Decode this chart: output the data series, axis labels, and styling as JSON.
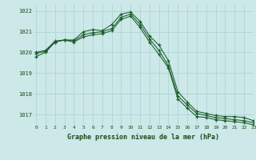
{
  "title": "Graphe pression niveau de la mer (hPa)",
  "bg_color": "#cce8e8",
  "grid_color": "#add4d4",
  "line_color": "#1a5c2a",
  "xlim": [
    -0.3,
    23
  ],
  "ylim": [
    1016.5,
    1022.3
  ],
  "yticks": [
    1017,
    1018,
    1019,
    1020,
    1021,
    1022
  ],
  "xticks": [
    0,
    1,
    2,
    3,
    4,
    5,
    6,
    7,
    8,
    9,
    10,
    11,
    12,
    13,
    14,
    15,
    16,
    17,
    18,
    19,
    20,
    21,
    22,
    23
  ],
  "series1": [
    1019.8,
    1020.0,
    1020.5,
    1020.6,
    1020.6,
    1021.0,
    1021.1,
    1021.05,
    1021.35,
    1021.85,
    1021.95,
    1021.5,
    1020.8,
    1020.35,
    1019.6,
    1018.1,
    1017.6,
    1017.15,
    1017.05,
    1016.95,
    1016.9,
    1016.9,
    1016.85,
    1016.7
  ],
  "series2": [
    1019.95,
    1020.05,
    1020.5,
    1020.6,
    1020.55,
    1020.85,
    1020.95,
    1021.0,
    1021.15,
    1021.7,
    1021.85,
    1021.35,
    1020.65,
    1020.1,
    1019.35,
    1017.9,
    1017.45,
    1017.05,
    1016.95,
    1016.85,
    1016.8,
    1016.75,
    1016.7,
    1016.6
  ],
  "series3": [
    1020.0,
    1020.1,
    1020.55,
    1020.6,
    1020.5,
    1020.75,
    1020.85,
    1020.9,
    1021.05,
    1021.6,
    1021.75,
    1021.2,
    1020.5,
    1019.9,
    1019.25,
    1017.75,
    1017.3,
    1016.9,
    1016.85,
    1016.75,
    1016.7,
    1016.65,
    1016.6,
    1016.5
  ]
}
